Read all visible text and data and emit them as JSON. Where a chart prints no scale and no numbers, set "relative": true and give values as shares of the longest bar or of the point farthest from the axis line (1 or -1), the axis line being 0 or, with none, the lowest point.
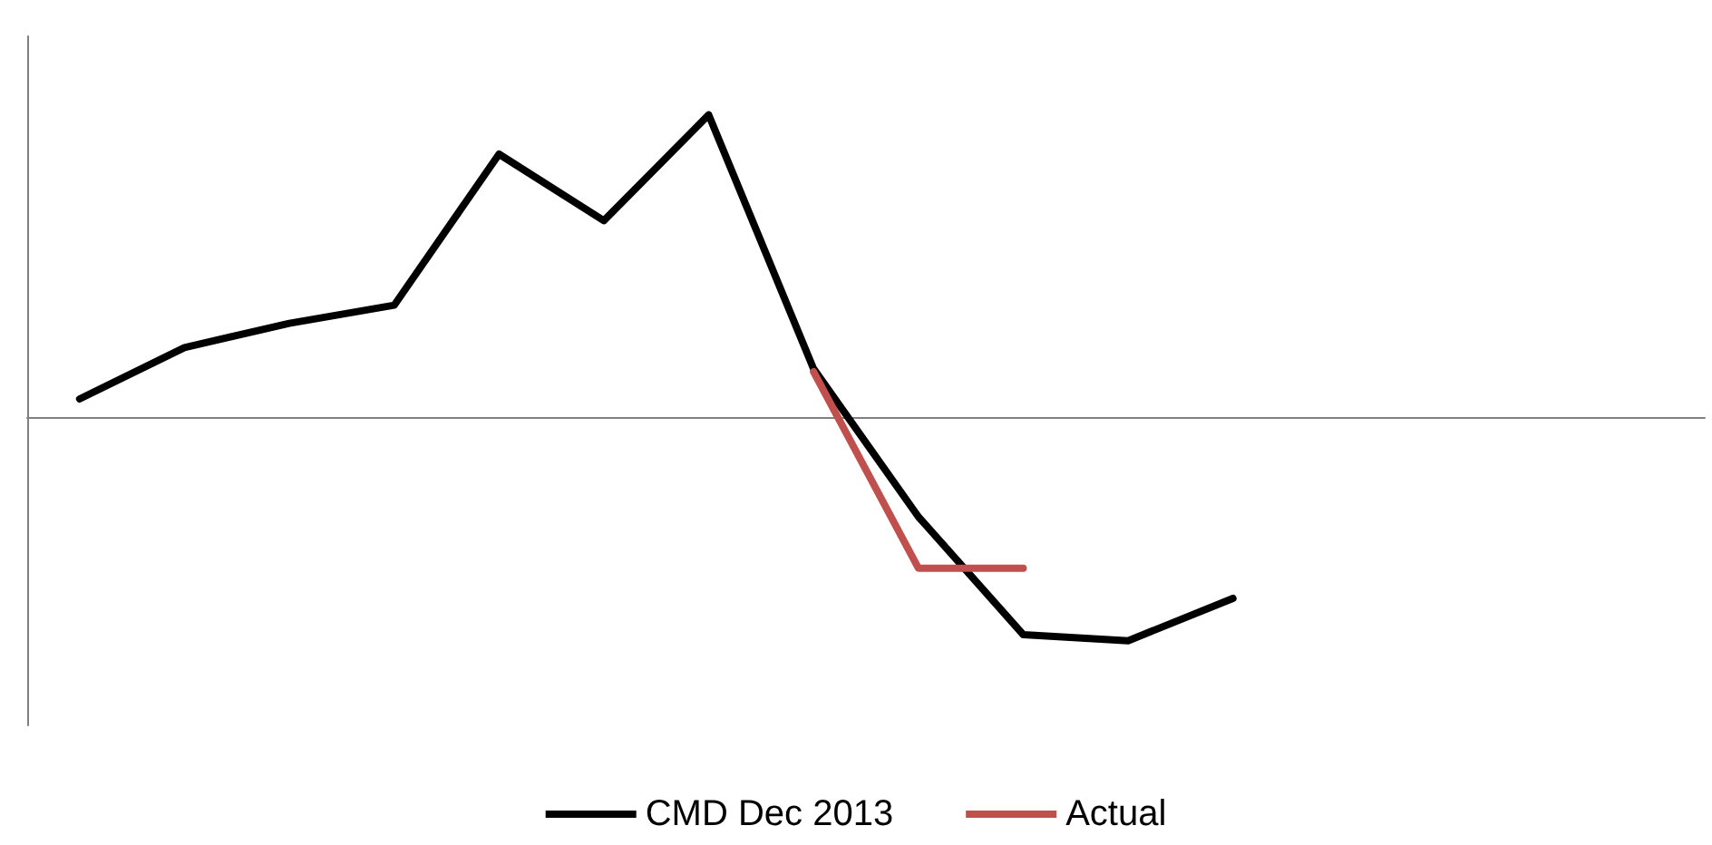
{
  "chart_data": {
    "type": "line",
    "relative": true,
    "categories": [
      null,
      null,
      null,
      null,
      null,
      null,
      null,
      null,
      null,
      null,
      null,
      null,
      null,
      null,
      null,
      null
    ],
    "series": [
      {
        "name": "CMD Dec 2013",
        "color": "#000000",
        "values": [
          0.06,
          0.23,
          0.31,
          0.37,
          0.87,
          0.65,
          1,
          0.16,
          -0.33,
          -0.72,
          -0.74,
          -0.6,
          null,
          null,
          null,
          null
        ]
      },
      {
        "name": "Actual",
        "color": "#c0504d",
        "values": [
          null,
          null,
          null,
          null,
          null,
          null,
          null,
          0.15,
          -0.5,
          -0.5,
          null,
          null,
          null,
          null,
          null,
          null
        ]
      }
    ],
    "legend": "bottom",
    "grid": false,
    "marker": "none",
    "line_style": "solid"
  }
}
